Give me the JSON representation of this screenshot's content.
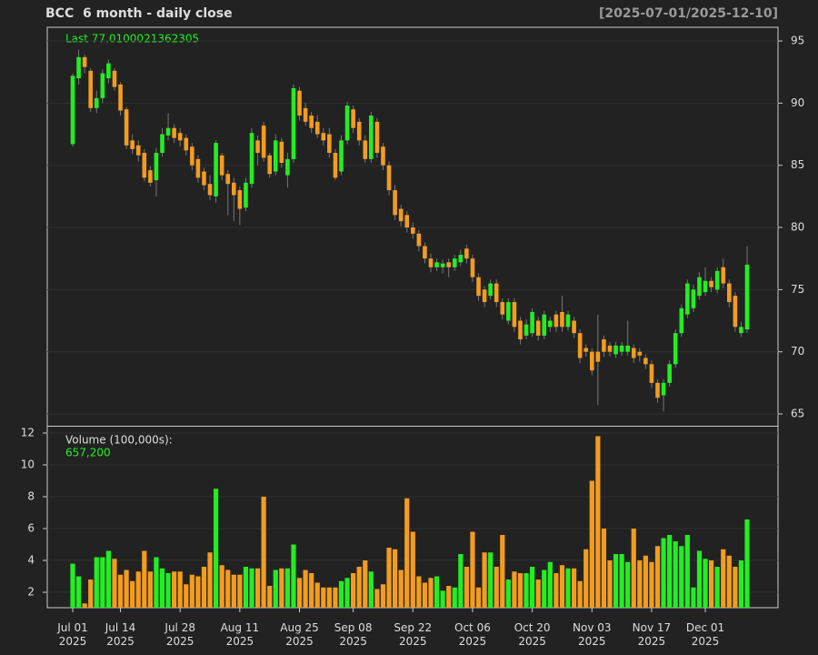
{
  "chart_data": {
    "type": "candlestick",
    "title": "BCC  6 month - daily close",
    "date_range": "[2025-07-01/2025-12-10]",
    "last_label": "Last 77.0100021362305",
    "volume_label": "Volume (100,000s):",
    "volume_last_label": "657,200",
    "up_color": "#22ee22",
    "down_color": "#f39c1e",
    "wick_color": "#777777",
    "grid": true,
    "x": [
      "Jul 01\n2025",
      null,
      null,
      null,
      null,
      null,
      null,
      null,
      "Jul 14\n2025",
      null,
      null,
      null,
      null,
      null,
      null,
      null,
      null,
      null,
      "Jul 28\n2025",
      null,
      null,
      null,
      null,
      null,
      null,
      null,
      null,
      null,
      "Aug 11\n2025",
      null,
      null,
      null,
      null,
      null,
      null,
      null,
      null,
      null,
      "Aug 25\n2025",
      null,
      null,
      null,
      null,
      null,
      null,
      null,
      null,
      "Sep 08\n2025",
      null,
      null,
      null,
      null,
      null,
      null,
      null,
      null,
      null,
      "Sep 22\n2025",
      null,
      null,
      null,
      null,
      null,
      null,
      null,
      null,
      null,
      "Oct 06\n2025",
      null,
      null,
      null,
      null,
      null,
      null,
      null,
      null,
      null,
      "Oct 20\n2025",
      null,
      null,
      null,
      null,
      null,
      null,
      null,
      null,
      null,
      "Nov 03\n2025",
      null,
      null,
      null,
      null,
      null,
      null,
      null,
      null,
      null,
      "Nov 17\n2025",
      null,
      null,
      null,
      null,
      null,
      null,
      null,
      null,
      "Dec 01\n2025",
      null,
      null,
      null,
      null,
      null,
      null,
      null
    ],
    "open": [
      86.7,
      92.0,
      93.7,
      92.6,
      89.6,
      90.4,
      92.0,
      92.6,
      91.5,
      89.5,
      87.0,
      86.6,
      86.0,
      84.6,
      83.8,
      86.0,
      87.4,
      88.0,
      87.6,
      87.2,
      86.5,
      85.5,
      84.5,
      83.5,
      82.5,
      85.8,
      84.3,
      83.6,
      83.0,
      81.6,
      83.5,
      87.0,
      88.2,
      85.8,
      84.5,
      86.9,
      84.2,
      85.5,
      91.0,
      89.6,
      89.0,
      88.5,
      87.6,
      87.5,
      86.0,
      84.5,
      87.0,
      89.5,
      88.5,
      87.0,
      85.5,
      88.5,
      86.5,
      85.0,
      83.0,
      81.5,
      81.0,
      80.0,
      79.5,
      78.5,
      77.5,
      76.8,
      76.8,
      77.2,
      76.8,
      77.2,
      78.3,
      77.5,
      76.0,
      75.0,
      74.5,
      75.5,
      74.0,
      72.5,
      74.0,
      72.5,
      71.3,
      71.5,
      72.5,
      71.3,
      72.0,
      73.0,
      73.2,
      72.0,
      72.5,
      71.5,
      70.3,
      70.0,
      70.0,
      71.0,
      70.5,
      69.8,
      70.0,
      70.0,
      70.3,
      70.0,
      69.5,
      69.0,
      67.5,
      66.5,
      67.5,
      69.0,
      71.5,
      73.0,
      73.5,
      74.5,
      74.8,
      75.7,
      75.0,
      76.8,
      75.5,
      74.5,
      71.5,
      71.8
    ],
    "high": [
      92.4,
      94.3,
      93.9,
      92.8,
      91.0,
      92.7,
      93.5,
      92.8,
      91.7,
      89.7,
      87.5,
      87.0,
      86.3,
      84.9,
      86.4,
      88.0,
      89.2,
      88.3,
      88.0,
      87.5,
      86.8,
      85.8,
      84.8,
      84.2,
      87.0,
      86.0,
      84.6,
      84.0,
      83.3,
      84.0,
      88.0,
      87.4,
      88.5,
      86.0,
      87.5,
      87.2,
      86.0,
      91.5,
      91.3,
      90.0,
      89.3,
      89.0,
      88.0,
      88.0,
      86.3,
      87.4,
      90.1,
      89.8,
      88.8,
      87.4,
      89.3,
      88.8,
      86.8,
      85.3,
      83.4,
      81.8,
      81.3,
      80.4,
      79.8,
      78.8,
      77.9,
      77.5,
      77.4,
      77.5,
      77.8,
      78.2,
      78.6,
      77.8,
      76.3,
      75.3,
      75.8,
      75.8,
      74.3,
      74.3,
      74.3,
      72.8,
      72.6,
      73.5,
      72.8,
      73.3,
      72.8,
      73.3,
      74.5,
      73.3,
      72.8,
      71.8,
      70.6,
      70.3,
      73.0,
      71.3,
      70.8,
      70.8,
      70.8,
      72.5,
      70.6,
      70.3,
      69.8,
      69.3,
      67.8,
      67.8,
      69.3,
      71.8,
      73.8,
      75.8,
      75.4,
      76.4,
      76.8,
      76.0,
      76.8,
      77.5,
      75.8,
      74.8,
      72.4,
      78.5
    ],
    "low": [
      86.5,
      91.5,
      92.4,
      89.3,
      89.2,
      90.0,
      91.6,
      91.0,
      89.0,
      86.3,
      85.9,
      85.3,
      83.7,
      83.3,
      82.5,
      85.7,
      87.0,
      86.8,
      86.5,
      85.8,
      84.6,
      83.6,
      83.0,
      82.2,
      82.0,
      83.8,
      81.0,
      80.5,
      80.2,
      81.3,
      83.2,
      85.0,
      85.3,
      84.0,
      84.2,
      84.8,
      83.2,
      85.2,
      88.6,
      88.2,
      87.6,
      87.2,
      86.6,
      85.6,
      83.8,
      84.2,
      86.7,
      87.6,
      86.6,
      85.2,
      85.2,
      85.6,
      84.6,
      82.6,
      80.6,
      80.1,
      79.6,
      79.1,
      78.1,
      77.1,
      76.4,
      76.5,
      76.3,
      76.0,
      76.5,
      76.9,
      77.1,
      75.6,
      74.1,
      73.6,
      74.2,
      73.6,
      72.6,
      72.2,
      71.6,
      70.6,
      71.0,
      71.2,
      70.9,
      71.0,
      71.6,
      71.6,
      71.6,
      71.7,
      71.1,
      69.1,
      69.6,
      68.1,
      65.7,
      69.6,
      69.6,
      69.5,
      69.7,
      69.7,
      69.1,
      69.2,
      68.6,
      67.1,
      65.9,
      65.2,
      67.2,
      68.7,
      71.2,
      72.7,
      73.2,
      74.2,
      74.5,
      74.8,
      74.7,
      75.1,
      73.6,
      71.6,
      71.2,
      71.5
    ],
    "close": [
      92.2,
      93.7,
      92.9,
      89.6,
      90.4,
      92.4,
      93.2,
      91.3,
      89.4,
      86.6,
      86.3,
      85.8,
      84.0,
      83.6,
      86.0,
      87.5,
      88.0,
      87.2,
      87.0,
      86.2,
      85.0,
      84.0,
      83.4,
      82.6,
      86.8,
      84.2,
      83.5,
      82.6,
      81.5,
      83.6,
      87.6,
      86.0,
      85.6,
      84.3,
      87.0,
      85.2,
      85.5,
      91.2,
      89.0,
      88.5,
      88.0,
      87.5,
      87.0,
      86.0,
      84.0,
      87.0,
      89.8,
      88.0,
      87.0,
      85.5,
      89.0,
      86.0,
      85.0,
      83.0,
      81.0,
      80.5,
      80.0,
      79.5,
      78.5,
      77.5,
      76.8,
      77.2,
      77.1,
      76.8,
      77.5,
      77.8,
      77.5,
      76.0,
      74.5,
      74.0,
      75.5,
      74.0,
      73.0,
      74.0,
      72.0,
      71.0,
      72.2,
      73.2,
      71.3,
      73.0,
      72.5,
      72.0,
      72.0,
      73.0,
      71.5,
      69.5,
      70.0,
      68.5,
      69.2,
      70.0,
      70.0,
      70.5,
      70.5,
      70.5,
      69.5,
      69.7,
      69.0,
      67.5,
      66.3,
      67.5,
      69.0,
      71.5,
      73.5,
      75.5,
      75.0,
      76.0,
      75.7,
      75.2,
      76.5,
      75.5,
      74.0,
      72.0,
      72.0,
      77.0100021362305
    ],
    "volume": [
      3.8,
      3.0,
      1.3,
      2.8,
      4.2,
      4.2,
      4.6,
      4.1,
      3.1,
      3.4,
      2.7,
      3.3,
      4.6,
      3.3,
      4.2,
      3.5,
      3.2,
      3.3,
      3.3,
      2.5,
      3.1,
      3.0,
      3.6,
      4.5,
      8.5,
      3.7,
      3.4,
      3.1,
      3.1,
      3.6,
      3.5,
      3.5,
      8.0,
      2.4,
      3.4,
      3.5,
      3.5,
      5.0,
      2.9,
      3.4,
      3.2,
      2.6,
      2.3,
      2.3,
      2.3,
      2.7,
      2.9,
      3.2,
      3.6,
      4.0,
      3.3,
      2.2,
      2.5,
      4.8,
      4.7,
      3.4,
      7.9,
      5.8,
      3.0,
      2.6,
      2.9,
      3.0,
      2.1,
      2.4,
      2.3,
      4.4,
      3.6,
      5.8,
      2.3,
      4.5,
      4.5,
      3.6,
      5.6,
      2.8,
      3.3,
      3.2,
      3.2,
      3.6,
      2.8,
      3.4,
      3.9,
      3.2,
      3.7,
      3.5,
      3.5,
      2.7,
      4.7,
      9.0,
      11.8,
      6.0,
      4.0,
      4.4,
      4.4,
      3.9,
      6.0,
      4.0,
      4.3,
      3.9,
      4.9,
      5.4,
      5.6,
      5.2,
      4.9,
      5.6,
      2.3,
      4.6,
      4.1,
      4.0,
      3.6,
      4.7,
      4.3,
      3.6,
      4.0,
      6.572
    ],
    "ylim": [
      64.05,
      96.1
    ],
    "yticks": [
      65,
      70,
      75,
      80,
      85,
      90,
      95
    ],
    "volume_ylim": [
      1.03,
      12.4
    ],
    "volume_yticks": [
      2,
      4,
      6,
      8,
      10,
      12
    ]
  }
}
